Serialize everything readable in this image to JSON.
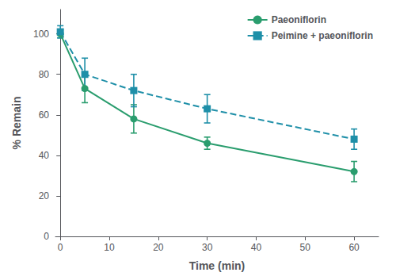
{
  "chart_data": {
    "type": "line",
    "xlabel": "Time (min)",
    "ylabel": "% Remain",
    "x": [
      0,
      5,
      15,
      30,
      60
    ],
    "series": [
      {
        "name": "Paeoniflorin",
        "color": "#2a9d6e",
        "values": [
          100,
          73,
          58,
          46,
          32
        ],
        "errors": [
          2,
          7,
          7,
          3,
          5
        ],
        "marker": "circle",
        "line_style": "solid"
      },
      {
        "name": "Peimine + paeoniflorin",
        "color": "#1e8fa8",
        "values": [
          101,
          80,
          72,
          63,
          48
        ],
        "errors": [
          3,
          8,
          8,
          7,
          5
        ],
        "marker": "square",
        "line_style": "dashed"
      }
    ],
    "xlim": [
      -1,
      65
    ],
    "xticks": [
      0,
      10,
      20,
      30,
      40,
      50,
      60
    ],
    "ylim": [
      0,
      112
    ],
    "yticks": [
      0,
      20,
      40,
      60,
      80,
      100
    ],
    "grid": false,
    "legend": "upper right"
  }
}
